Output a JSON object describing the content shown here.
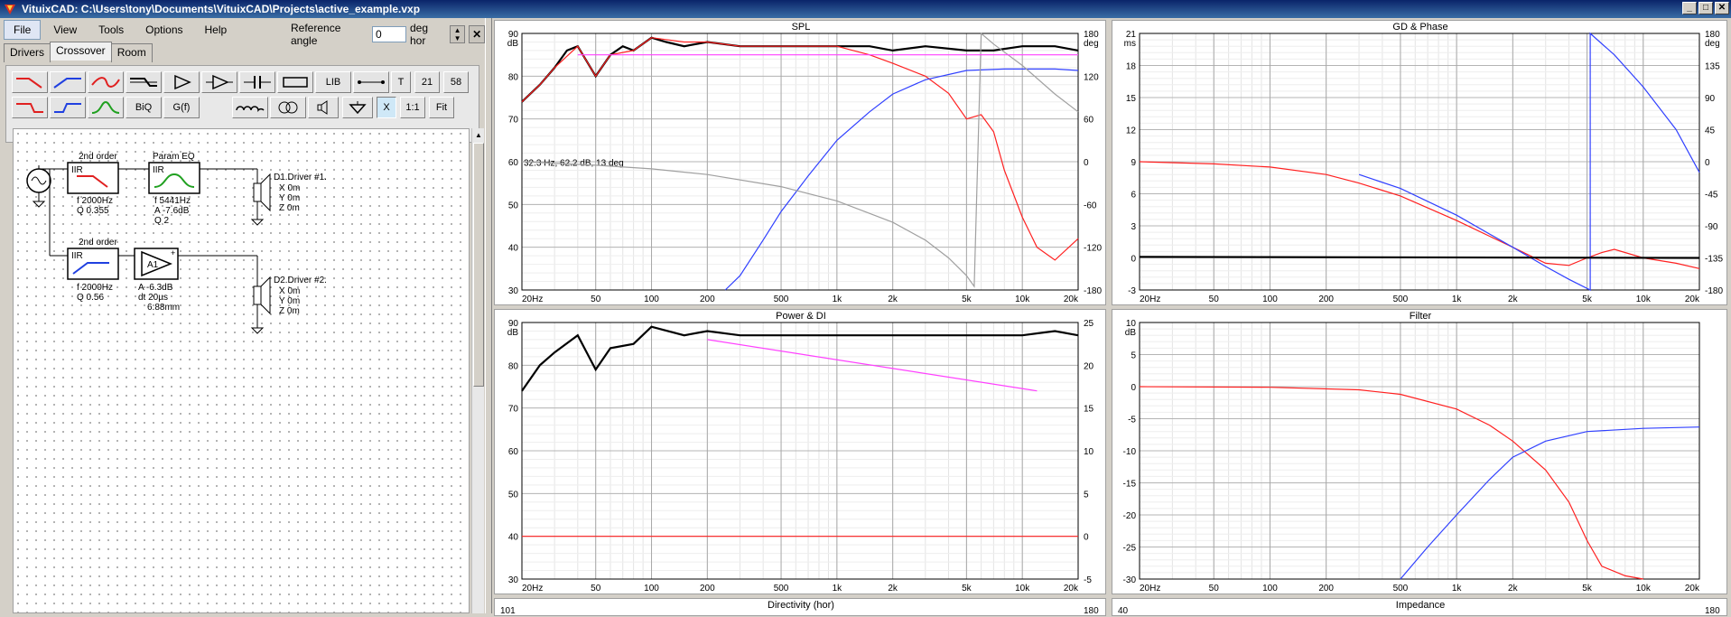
{
  "window": {
    "title": "VituixCAD: C:\\Users\\tony\\Documents\\VituixCAD\\Projects\\active_example.vxp",
    "buttons": [
      "_",
      "□",
      "✕"
    ]
  },
  "menu": [
    "File",
    "View",
    "Tools",
    "Options",
    "Help"
  ],
  "reference_angle": {
    "label": "Reference angle",
    "value": "0",
    "unit": "deg hor"
  },
  "tabs": [
    "Drivers",
    "Crossover",
    "Room"
  ],
  "toolbar": {
    "lib": "LIB",
    "t": "T",
    "n21": "21",
    "n58": "58",
    "biq": "BiQ",
    "gf": "G(f)",
    "x": "X",
    "ratio": "1:1",
    "fit": "Fit"
  },
  "schematic": {
    "block1": {
      "header": "2nd order",
      "type": "IIR",
      "f": "f  2000Hz",
      "q": "Q  0.355"
    },
    "block2": {
      "header": "Param EQ",
      "type": "IIR",
      "f": "f  5441Hz",
      "a": "A  -7.6dB",
      "q": "Q  2"
    },
    "block3": {
      "header": "2nd order",
      "type": "IIR",
      "f": "f  2000Hz",
      "q": "Q  0.56"
    },
    "block4": {
      "type": "A1",
      "a": "A  -6.3dB",
      "dt": "dt 20µs",
      "dist": "6.88mm"
    },
    "driver1": {
      "name": "D1.Driver #1.",
      "x": "X  0m",
      "y": "Y  0m",
      "z": "Z  0m"
    },
    "driver2": {
      "name": "D2.Driver #2.",
      "x": "X  0m",
      "y": "Y  0m",
      "z": "Z  0m"
    }
  },
  "freq_ticks": [
    "20Hz",
    "50",
    "100",
    "200",
    "500",
    "1k",
    "2k",
    "5k",
    "10k",
    "20k"
  ],
  "colors": {
    "red": "#ff2020",
    "blue": "#3040ff",
    "magenta": "#ff40ff",
    "grey": "#a0a0a0",
    "black": "#000000"
  },
  "chart_data": [
    {
      "type": "line",
      "title": "SPL",
      "ylabel": "dB",
      "y2label": "deg",
      "ylim": [
        30,
        90
      ],
      "yticks": [
        "90",
        "80",
        "70",
        "60",
        "50",
        "40",
        "30"
      ],
      "y2lim": [
        -180,
        180
      ],
      "y2ticks": [
        "180",
        "120",
        "60",
        "0",
        "-60",
        "-120",
        "-180"
      ],
      "annotation": "32.3 Hz, 62.2 dB, 13 deg",
      "series": [
        {
          "color": "black",
          "x": [
            20,
            25,
            30,
            35,
            40,
            50,
            60,
            70,
            80,
            100,
            120,
            150,
            200,
            300,
            500,
            700,
            1000,
            1500,
            2000,
            3000,
            5000,
            7000,
            10000,
            15000,
            20000
          ],
          "y": [
            74,
            78,
            82,
            86,
            87,
            80,
            85,
            87,
            86,
            89,
            88,
            87,
            88,
            87,
            87,
            87,
            87,
            87,
            86,
            87,
            86,
            86,
            87,
            87,
            86
          ]
        },
        {
          "color": "red",
          "x": [
            20,
            25,
            30,
            40,
            50,
            60,
            80,
            100,
            150,
            200,
            300,
            500,
            700,
            1000,
            1500,
            2000,
            3000,
            4000,
            5000,
            6000,
            7000,
            8000,
            10000,
            12000,
            15000,
            20000
          ],
          "y": [
            74,
            78,
            82,
            87,
            80,
            85,
            86,
            89,
            88,
            88,
            87,
            87,
            87,
            87,
            85,
            83,
            80,
            76,
            70,
            71,
            67,
            58,
            47,
            40,
            37,
            42
          ]
        },
        {
          "color": "blue",
          "x": [
            250,
            300,
            400,
            500,
            700,
            1000,
            1500,
            2000,
            3000,
            5000,
            8000,
            10000,
            15000,
            20000
          ],
          "y": [
            -180,
            -160,
            -110,
            -70,
            -20,
            30,
            70,
            95,
            115,
            128,
            130,
            130,
            130,
            128
          ]
        },
        {
          "color": "grey",
          "x": [
            20,
            50,
            100,
            200,
            500,
            1000,
            2000,
            3000,
            4000,
            5000,
            5500,
            6000,
            7000,
            10000,
            15000,
            20000
          ],
          "y": [
            0,
            -5,
            -10,
            -18,
            -35,
            -55,
            -85,
            -110,
            -135,
            -160,
            -175,
            180,
            165,
            135,
            95,
            70
          ]
        },
        {
          "color": "magenta",
          "x": [
            40,
            20000
          ],
          "y": [
            85,
            85
          ]
        }
      ]
    },
    {
      "type": "line",
      "title": "GD & Phase",
      "ylabel": "ms",
      "y2label": "deg",
      "ylim": [
        -3,
        21
      ],
      "yticks": [
        "21",
        "18",
        "15",
        "12",
        "9",
        "6",
        "3",
        "0",
        "-3"
      ],
      "y2lim": [
        -180,
        180
      ],
      "y2ticks": [
        "180",
        "135",
        "90",
        "45",
        "0",
        "-45",
        "-90",
        "-135",
        "-180"
      ],
      "series": [
        {
          "color": "red",
          "x": [
            20,
            50,
            100,
            200,
            300,
            500,
            1000,
            2000,
            3000,
            4000,
            5000,
            6000,
            7000,
            10000,
            15000,
            20000
          ],
          "y": [
            9,
            8.8,
            8.5,
            7.8,
            7,
            5.8,
            3.5,
            1,
            -0.5,
            -0.7,
            0,
            0.5,
            0.8,
            0,
            -0.5,
            -1
          ]
        },
        {
          "color": "blue",
          "x": [
            300,
            500,
            1000,
            2000,
            3000,
            4000,
            5200,
            5201,
            7000,
            10000,
            15000,
            20000
          ],
          "y": [
            7.8,
            6.5,
            4,
            1,
            -0.8,
            -2,
            -3,
            21,
            19,
            16,
            12,
            8
          ]
        },
        {
          "color": "black",
          "x": [
            20,
            20000
          ],
          "y": [
            0.1,
            0
          ]
        }
      ]
    },
    {
      "type": "line",
      "title": "Power & DI",
      "ylabel": "dB",
      "y2label": "",
      "ylim": [
        30,
        90
      ],
      "yticks": [
        "90",
        "80",
        "70",
        "60",
        "50",
        "40",
        "30"
      ],
      "y2lim": [
        -5,
        25
      ],
      "y2ticks": [
        "25",
        "20",
        "15",
        "10",
        "5",
        "0",
        "-5"
      ],
      "series": [
        {
          "color": "black",
          "x": [
            20,
            25,
            30,
            40,
            50,
            60,
            80,
            100,
            150,
            200,
            300,
            500,
            1000,
            2000,
            5000,
            10000,
            15000,
            20000
          ],
          "y": [
            74,
            80,
            83,
            87,
            79,
            84,
            85,
            89,
            87,
            88,
            87,
            87,
            87,
            87,
            87,
            87,
            88,
            87
          ]
        },
        {
          "color": "magenta",
          "x": [
            200,
            12000
          ],
          "y": [
            23,
            17
          ]
        },
        {
          "color": "red",
          "x": [
            20,
            20000
          ],
          "y": [
            0,
            0
          ]
        }
      ]
    },
    {
      "type": "line",
      "title": "Filter",
      "ylabel": "dB",
      "y2label": "",
      "ylim": [
        -30,
        10
      ],
      "yticks": [
        "10",
        "5",
        "0",
        "-5",
        "-10",
        "-15",
        "-20",
        "-25",
        "-30"
      ],
      "series": [
        {
          "color": "red",
          "x": [
            20,
            100,
            300,
            500,
            1000,
            1500,
            2000,
            3000,
            4000,
            5000,
            6000,
            8000,
            10000
          ],
          "y": [
            0,
            -0.1,
            -0.5,
            -1.2,
            -3.5,
            -6,
            -8.5,
            -13,
            -18,
            -24,
            -28,
            -29.5,
            -30
          ]
        },
        {
          "color": "blue",
          "x": [
            500,
            700,
            1000,
            1500,
            2000,
            3000,
            5000,
            10000,
            20000
          ],
          "y": [
            -30,
            -25,
            -20,
            -14.5,
            -11,
            -8.5,
            -7,
            -6.5,
            -6.3
          ]
        }
      ]
    },
    {
      "type": "line",
      "title": "Directivity (hor)",
      "ytop": "101",
      "y2top": "180"
    },
    {
      "type": "line",
      "title": "Impedance",
      "ytop": "40",
      "y2top": "180"
    }
  ]
}
